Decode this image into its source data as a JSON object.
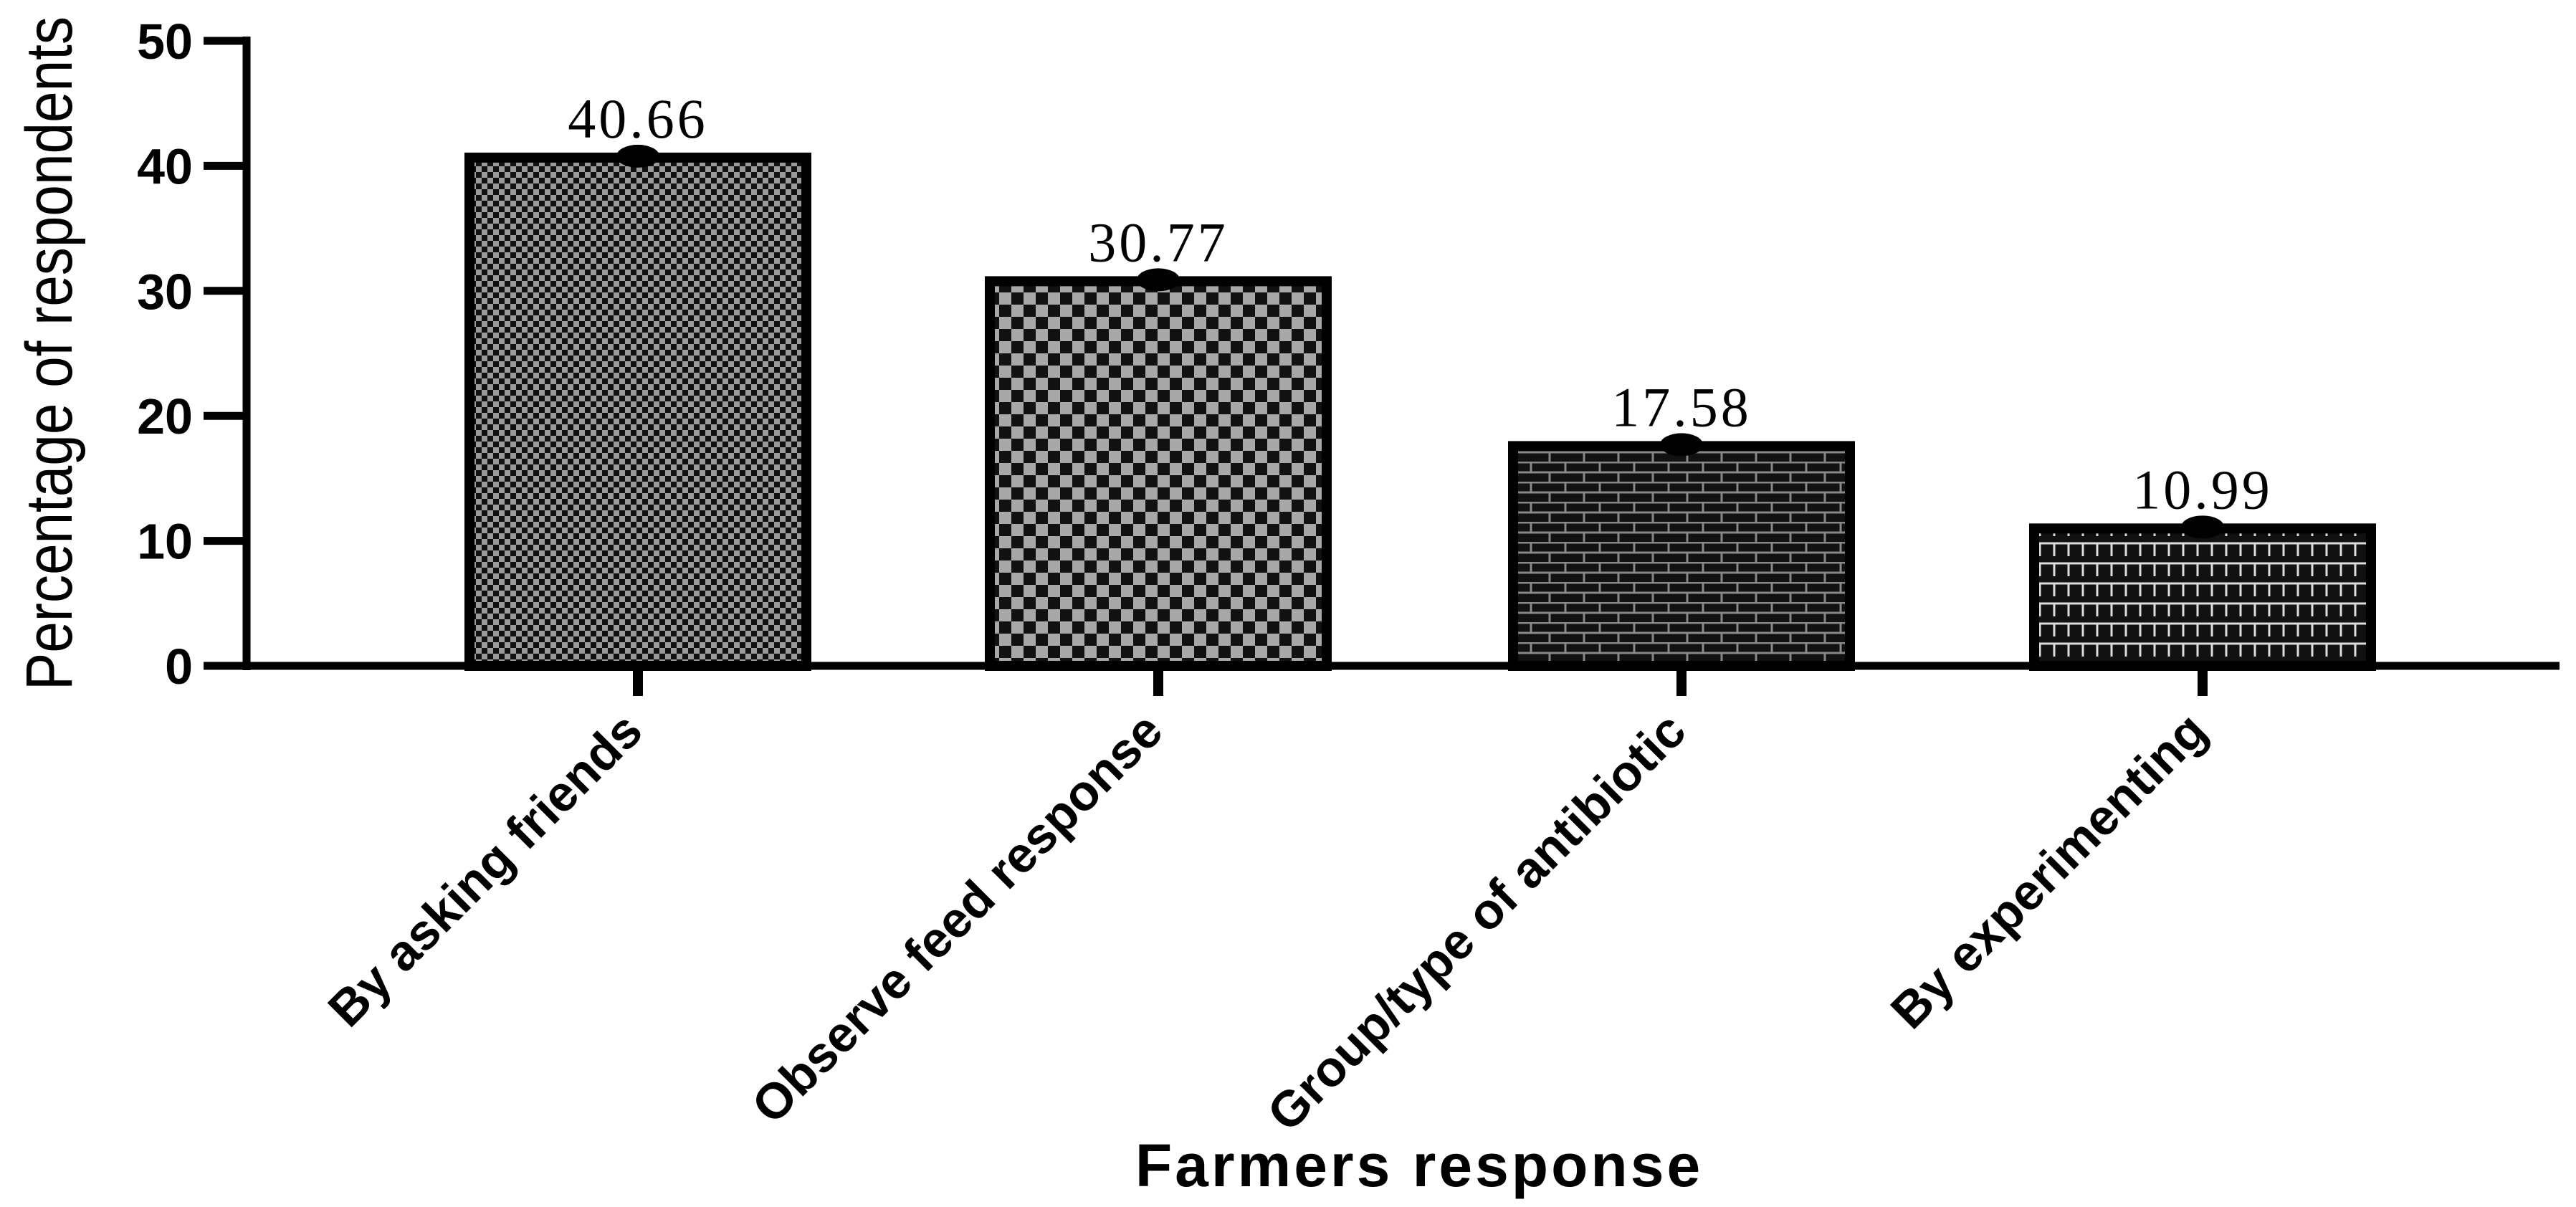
{
  "chart_data": {
    "type": "bar",
    "x_label": "Farmers response",
    "y_label": "Percentage of respondents",
    "categories": [
      "By asking friends",
      "Observe feed response",
      "Group/type of antibiotic",
      "By experimenting"
    ],
    "values": [
      40.66,
      30.77,
      17.58,
      10.99
    ],
    "color": "#000000",
    "ylim": [
      0,
      50
    ],
    "yticks": [
      0,
      10,
      20,
      30,
      40,
      50
    ],
    "grid": false
  }
}
